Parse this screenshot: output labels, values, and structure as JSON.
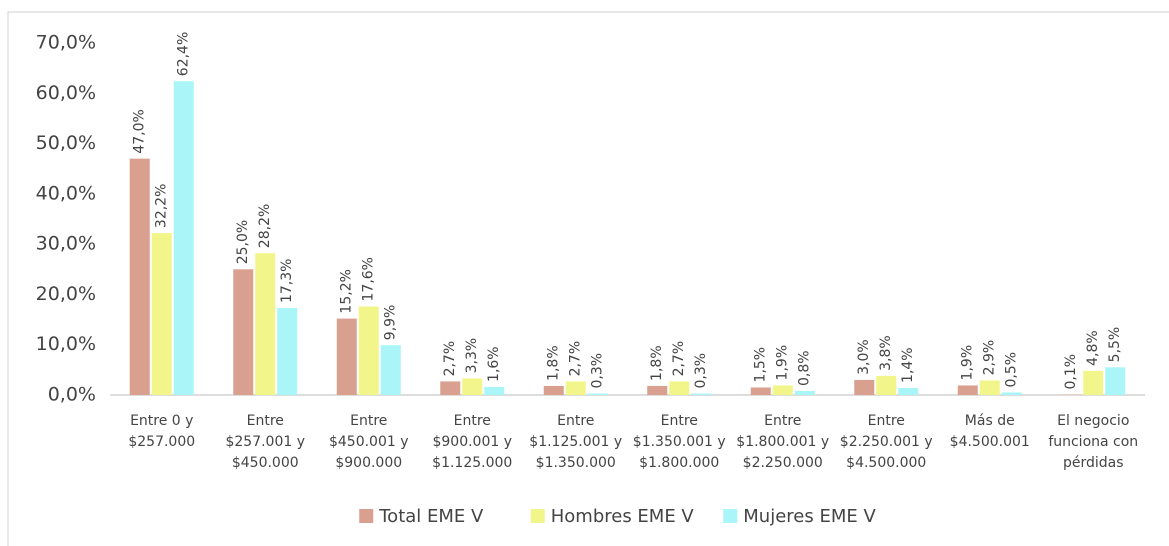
{
  "chart_data": {
    "type": "bar",
    "categories": [
      "Entre 0 y $257.000",
      "Entre $257.001 y $450.000",
      "Entre $450.001 y $900.000",
      "Entre $900.001 y $1.125.000",
      "Entre $1.125.001 y $1.350.000",
      "Entre $1.350.001 y $1.800.000",
      "Entre $1.800.001 y $2.250.000",
      "Entre $2.250.001 y $4.500.000",
      "Más de $4.500.001",
      "El negocio funciona con pérdidas"
    ],
    "series": [
      {
        "name": "Total EME V",
        "color": "#d9a090",
        "values": [
          47.0,
          25.0,
          15.2,
          2.7,
          1.8,
          1.8,
          1.5,
          3.0,
          1.9,
          0.1
        ],
        "value_labels": [
          "47,0%",
          "25,0%",
          "15,2%",
          "2,7%",
          "1,8%",
          "1,8%",
          "1,5%",
          "3,0%",
          "1,9%",
          "0,1%"
        ]
      },
      {
        "name": "Hombres EME V",
        "color": "#f2f58a",
        "values": [
          32.2,
          28.2,
          17.6,
          3.3,
          2.7,
          2.7,
          1.9,
          3.8,
          2.9,
          4.8
        ],
        "value_labels": [
          "32,2%",
          "28,2%",
          "17,6%",
          "3,3%",
          "2,7%",
          "2,7%",
          "1,9%",
          "3,8%",
          "2,9%",
          "4,8%"
        ]
      },
      {
        "name": "Mujeres EME V",
        "color": "#a9f5f7",
        "values": [
          62.4,
          17.3,
          9.9,
          1.6,
          0.3,
          0.3,
          0.8,
          1.4,
          0.5,
          5.5
        ],
        "value_labels": [
          "62,4%",
          "17,3%",
          "9,9%",
          "1,6%",
          "0,3%",
          "0,3%",
          "0,8%",
          "1,4%",
          "0,5%",
          "5,5%"
        ]
      }
    ],
    "ylim": [
      0,
      70
    ],
    "yticks": [
      {
        "value": 0,
        "label": "0,0%"
      },
      {
        "value": 10,
        "label": "10,0%"
      },
      {
        "value": 20,
        "label": "20,0%"
      },
      {
        "value": 30,
        "label": "30,0%"
      },
      {
        "value": 40,
        "label": "40,0%"
      },
      {
        "value": 50,
        "label": "50,0%"
      },
      {
        "value": 60,
        "label": "60,0%"
      },
      {
        "value": 70,
        "label": "70,0%"
      }
    ],
    "grid": false,
    "legend": "bottom"
  }
}
